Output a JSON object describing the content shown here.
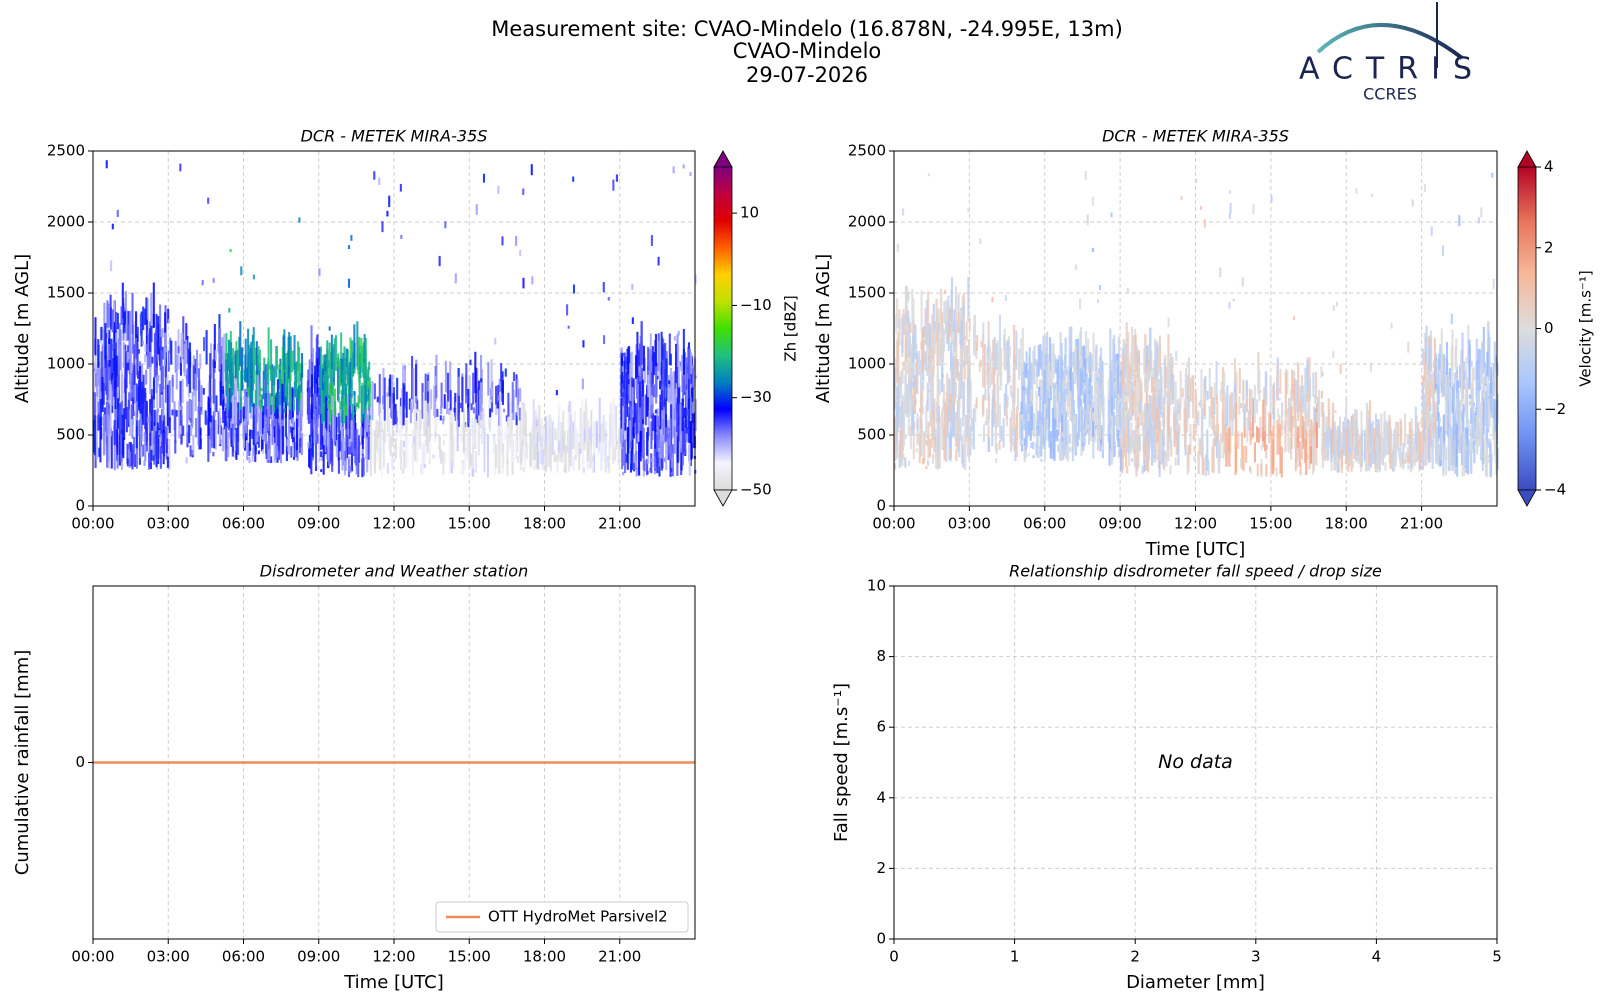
{
  "header": {
    "title_lines": [
      "Measurement site: CVAO-Mindelo (16.878N, -24.995E, 13m)",
      "CVAO-Mindelo",
      "29-07-2026"
    ],
    "logo": "ACTRIS",
    "logo_sub": "CCRES"
  },
  "chart_data": [
    {
      "type": "heatmap",
      "title": "DCR - METEK MIRA-35S",
      "y_label": "Altitude [m AGL]",
      "xlim": [
        0,
        24
      ],
      "xticks": [
        {
          "value": 0,
          "label": "00:00"
        },
        {
          "value": 3,
          "label": "03:00"
        },
        {
          "value": 6,
          "label": "06:00"
        },
        {
          "value": 9,
          "label": "09:00"
        },
        {
          "value": 12,
          "label": "12:00"
        },
        {
          "value": 15,
          "label": "15:00"
        },
        {
          "value": 18,
          "label": "18:00"
        },
        {
          "value": 21,
          "label": "21:00"
        }
      ],
      "ylim": [
        0,
        2500
      ],
      "yticks": [
        0,
        500,
        1000,
        1500,
        2000,
        2500
      ],
      "grid": true,
      "colorbar": {
        "label": "Zh [dBZ]",
        "lim": [
          -50,
          20
        ],
        "ticks": [
          {
            "value": -50,
            "label": "−50"
          },
          {
            "value": -30,
            "label": "−30"
          },
          {
            "value": -10,
            "label": "−10"
          },
          10
        ],
        "colors": [
          "#dcdcdc",
          "#f4f4ff",
          "#8c8cff",
          "#0000ff",
          "#0080c0",
          "#20c080",
          "#40e000",
          "#c0e000",
          "#ffd000",
          "#ff6000",
          "#e00000",
          "#c00040",
          "#800080"
        ],
        "extend": "both"
      }
    },
    {
      "type": "heatmap",
      "title": "DCR - METEK MIRA-35S",
      "y_label": "Altitude [m AGL]",
      "x_label": "Time [UTC]",
      "xlim": [
        0,
        24
      ],
      "xticks": [
        {
          "value": 0,
          "label": "00:00"
        },
        {
          "value": 3,
          "label": "03:00"
        },
        {
          "value": 6,
          "label": "06:00"
        },
        {
          "value": 9,
          "label": "09:00"
        },
        {
          "value": 12,
          "label": "12:00"
        },
        {
          "value": 15,
          "label": "15:00"
        },
        {
          "value": 18,
          "label": "18:00"
        },
        {
          "value": 21,
          "label": "21:00"
        }
      ],
      "ylim": [
        0,
        2500
      ],
      "yticks": [
        0,
        500,
        1000,
        1500,
        2000,
        2500
      ],
      "grid": true,
      "colorbar": {
        "label": "Velocity [m.s⁻¹]",
        "lim": [
          -4,
          4
        ],
        "ticks": [
          {
            "value": -4,
            "label": "−4"
          },
          {
            "value": -2,
            "label": "−2"
          },
          0,
          2,
          4
        ],
        "colors": [
          "#3b4cc0",
          "#6f92f3",
          "#aac7fd",
          "#dddddd",
          "#f7b89c",
          "#e7745b",
          "#b40426"
        ],
        "extend": "both"
      }
    },
    {
      "type": "line",
      "title": "Disdrometer and Weather station",
      "x_label": "Time [UTC]",
      "y_label": "Cumulative rainfall [mm]",
      "x": [
        0,
        24
      ],
      "series": [
        {
          "name": "OTT HydroMet Parsivel2",
          "color": "#f08c5a",
          "values": [
            0,
            0
          ]
        }
      ],
      "xlim": [
        0,
        24
      ],
      "xticks": [
        {
          "value": 0,
          "label": "00:00"
        },
        {
          "value": 3,
          "label": "03:00"
        },
        {
          "value": 6,
          "label": "06:00"
        },
        {
          "value": 9,
          "label": "09:00"
        },
        {
          "value": 12,
          "label": "12:00"
        },
        {
          "value": 15,
          "label": "15:00"
        },
        {
          "value": 18,
          "label": "18:00"
        },
        {
          "value": 21,
          "label": "21:00"
        }
      ],
      "ylim": [
        -0.055,
        0.055
      ],
      "yticks": [
        0
      ],
      "grid": true,
      "legend": "lower right"
    },
    {
      "type": "scatter",
      "title": "Relationship disdrometer fall speed / drop size",
      "x_label": "Diameter [mm]",
      "y_label": "Fall speed [m.s⁻¹]",
      "annotation": "No data",
      "xlim": [
        0,
        5
      ],
      "xticks": [
        0,
        1,
        2,
        3,
        4,
        5
      ],
      "ylim": [
        0,
        10
      ],
      "yticks": [
        0,
        2,
        4,
        6,
        8,
        10
      ],
      "grid": true
    }
  ]
}
